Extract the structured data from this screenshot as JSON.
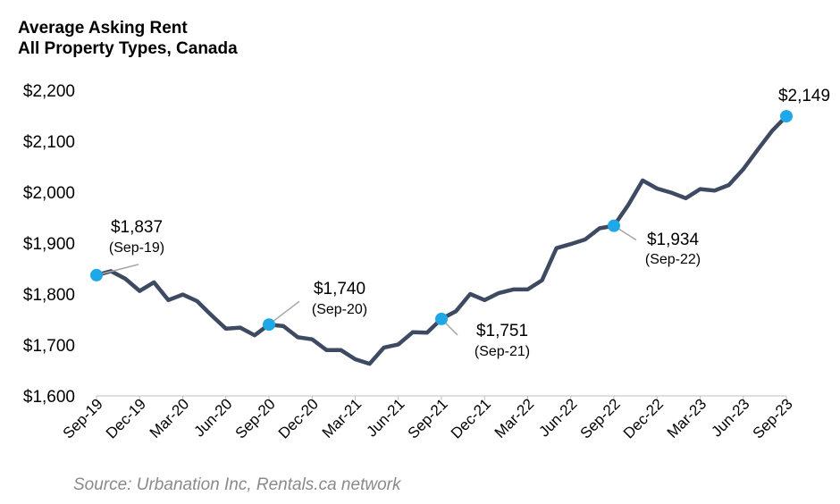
{
  "title_line1": "Average Asking Rent",
  "title_line2": "All Property Types, Canada",
  "source": "Source: Urbanation Inc, Rentals.ca network",
  "colors": {
    "line": "#3e4a61",
    "marker": "#1fa8e8",
    "text": "#000000",
    "source": "#8a8a8a"
  },
  "chart_data": {
    "type": "line",
    "title": "Average Asking Rent All Property Types, Canada",
    "ylim": [
      1600,
      2200
    ],
    "yticks": [
      1600,
      1700,
      1800,
      1900,
      2000,
      2100,
      2200
    ],
    "ytick_labels": [
      "$1,600",
      "$1,700",
      "$1,800",
      "$1,900",
      "$2,000",
      "$2,100",
      "$2,200"
    ],
    "xtick_labels": [
      "Sep-19",
      "Dec-19",
      "Mar-20",
      "Jun-20",
      "Sep-20",
      "Dec-20",
      "Mar-21",
      "Jun-21",
      "Sep-21",
      "Dec-21",
      "Mar-22",
      "Jun-22",
      "Sep-22",
      "Dec-22",
      "Mar-23",
      "Jun-23",
      "Sep-23"
    ],
    "xtick_positions": [
      0,
      3,
      6,
      9,
      12,
      15,
      18,
      21,
      24,
      27,
      30,
      33,
      36,
      39,
      42,
      45,
      48
    ],
    "x": [
      "Sep-19",
      "Oct-19",
      "Nov-19",
      "Dec-19",
      "Jan-20",
      "Feb-20",
      "Mar-20",
      "Apr-20",
      "May-20",
      "Jun-20",
      "Jul-20",
      "Aug-20",
      "Sep-20",
      "Oct-20",
      "Nov-20",
      "Dec-20",
      "Jan-21",
      "Feb-21",
      "Mar-21",
      "Apr-21",
      "May-21",
      "Jun-21",
      "Jul-21",
      "Aug-21",
      "Sep-21",
      "Oct-21",
      "Nov-21",
      "Dec-21",
      "Jan-22",
      "Feb-22",
      "Mar-22",
      "Apr-22",
      "May-22",
      "Jun-22",
      "Jul-22",
      "Aug-22",
      "Sep-22",
      "Oct-22",
      "Nov-22",
      "Dec-22",
      "Jan-23",
      "Feb-23",
      "Mar-23",
      "Apr-23",
      "May-23",
      "Jun-23",
      "Jul-23",
      "Aug-23",
      "Sep-23"
    ],
    "values": [
      1837,
      1845,
      1830,
      1806,
      1823,
      1788,
      1799,
      1786,
      1758,
      1732,
      1734,
      1719,
      1740,
      1737,
      1715,
      1711,
      1690,
      1690,
      1672,
      1663,
      1695,
      1701,
      1725,
      1724,
      1751,
      1766,
      1800,
      1788,
      1802,
      1809,
      1809,
      1827,
      1890,
      1898,
      1907,
      1929,
      1934,
      1975,
      2023,
      2007,
      1999,
      1988,
      2006,
      2003,
      2014,
      2045,
      2083,
      2120,
      2149
    ],
    "highlights": [
      {
        "x": "Sep-19",
        "value": 1837,
        "label": "$1,837",
        "sublabel": "(Sep-19)"
      },
      {
        "x": "Sep-20",
        "value": 1740,
        "label": "$1,740",
        "sublabel": "(Sep-20)"
      },
      {
        "x": "Sep-21",
        "value": 1751,
        "label": "$1,751",
        "sublabel": "(Sep-21)"
      },
      {
        "x": "Sep-22",
        "value": 1934,
        "label": "$1,934",
        "sublabel": "(Sep-22)"
      },
      {
        "x": "Sep-23",
        "value": 2149,
        "label": "$2,149",
        "sublabel": ""
      }
    ],
    "grid": false,
    "legend": "none"
  }
}
